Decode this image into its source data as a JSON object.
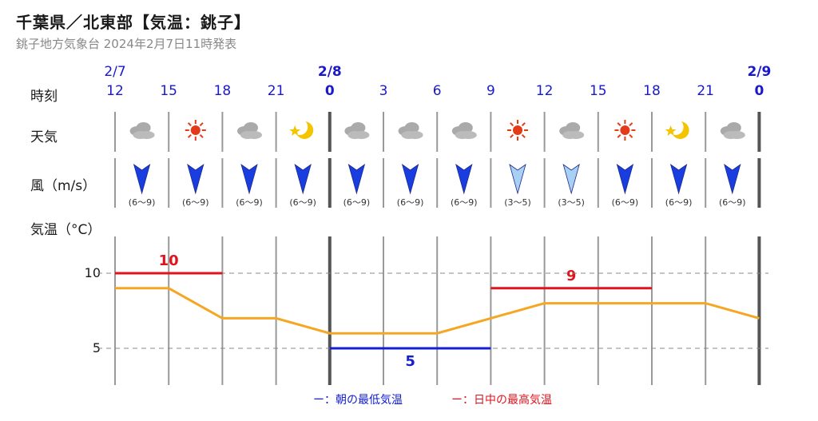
{
  "header": {
    "title": "千葉県／北東部【気温：銚子】",
    "subtitle": "銚子地方気象台 2024年2月7日11時発表"
  },
  "rows": {
    "time_label": "時刻",
    "weather_label": "天気",
    "wind_label": "風（m/s）",
    "temp_label": "気温（°C）"
  },
  "dates": [
    {
      "label": "2/7",
      "col": 0,
      "bold": false
    },
    {
      "label": "2/8",
      "col": 4,
      "bold": true
    },
    {
      "label": "2/9",
      "col": 12,
      "bold": true
    }
  ],
  "hours": [
    "12",
    "15",
    "18",
    "21",
    "0",
    "3",
    "6",
    "9",
    "12",
    "15",
    "18",
    "21",
    "0"
  ],
  "slots": [
    {
      "weather": "cloudy-icon",
      "wind": "(6〜9)",
      "wind_strength": "strong"
    },
    {
      "weather": "sunny-icon",
      "wind": "(6〜9)",
      "wind_strength": "strong"
    },
    {
      "weather": "cloudy-icon",
      "wind": "(6〜9)",
      "wind_strength": "strong"
    },
    {
      "weather": "moon-icon",
      "wind": "(6〜9)",
      "wind_strength": "strong"
    },
    {
      "weather": "cloudy-icon",
      "wind": "(6〜9)",
      "wind_strength": "strong"
    },
    {
      "weather": "cloudy-icon",
      "wind": "(6〜9)",
      "wind_strength": "strong"
    },
    {
      "weather": "cloudy-icon",
      "wind": "(6〜9)",
      "wind_strength": "strong"
    },
    {
      "weather": "sunny-icon",
      "wind": "(3〜5)",
      "wind_strength": "light"
    },
    {
      "weather": "cloudy-icon",
      "wind": "(3〜5)",
      "wind_strength": "light"
    },
    {
      "weather": "sunny-icon",
      "wind": "(6〜9)",
      "wind_strength": "strong"
    },
    {
      "weather": "moon-icon",
      "wind": "(6〜9)",
      "wind_strength": "strong"
    },
    {
      "weather": "cloudy-icon",
      "wind": "(6〜9)",
      "wind_strength": "strong"
    }
  ],
  "chart_data": {
    "type": "line",
    "x": [
      "2/7 12",
      "15",
      "18",
      "21",
      "2/8 0",
      "3",
      "6",
      "9",
      "12",
      "15",
      "18",
      "21",
      "2/9 0"
    ],
    "temperature": [
      9,
      9,
      7,
      7,
      6,
      6,
      6,
      7,
      8,
      8,
      8,
      8,
      7
    ],
    "yticks": [
      5,
      10
    ],
    "ylim": [
      2.5,
      12.5
    ],
    "max_temps": [
      {
        "value": 10,
        "label": "10",
        "from_index": 0,
        "to_index": 2
      },
      {
        "value": 9,
        "label": "9",
        "from_index": 7,
        "to_index": 10
      }
    ],
    "min_temps": [
      {
        "value": 5,
        "label": "5",
        "from_index": 4,
        "to_index": 7
      }
    ],
    "colors": {
      "temp_line": "#f5a623",
      "max": "#e0141e",
      "min": "#1420d0",
      "grid": "#888888",
      "arrow_strong": "#1a3de0",
      "arrow_light": "#a8d0f5"
    }
  },
  "legend": {
    "min_label": "ー：朝の最低気温",
    "max_label": "ー：日中の最高気温"
  }
}
